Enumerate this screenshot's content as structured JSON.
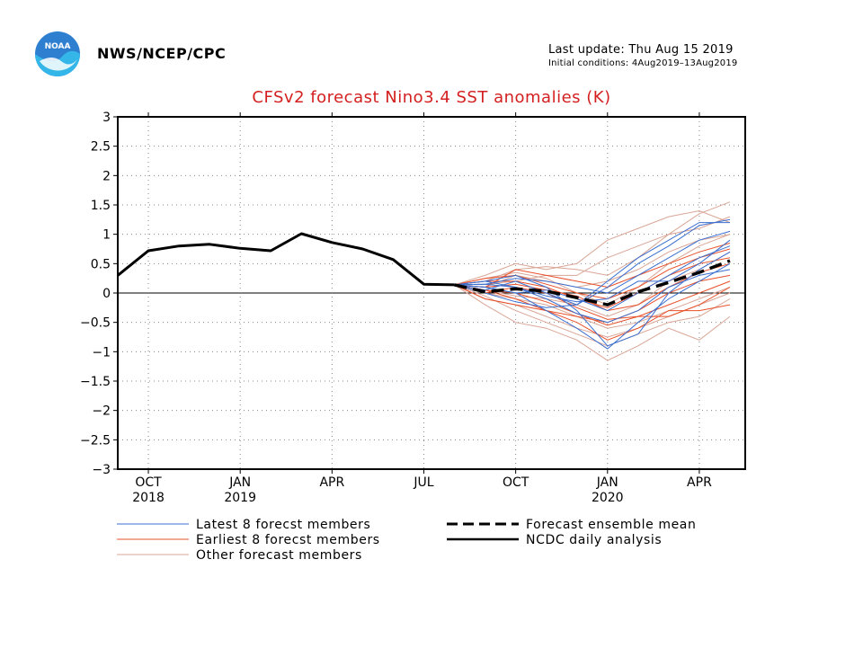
{
  "header": {
    "agency": "NWS/NCEP/CPC",
    "last_update": "Last update: Thu Aug 15 2019",
    "initial_conditions": "Initial conditions: 4Aug2019–13Aug2019",
    "logo_text": "NOAA"
  },
  "colors": {
    "title": "#d42020",
    "latest": "#3a6fd0",
    "earliest": "#e8502a",
    "other": "#d9a596",
    "analysis": "#000000"
  },
  "chart_data": {
    "type": "line",
    "title": "CFSv2 forecast Nino3.4 SST anomalies (K)",
    "ylim": [
      -3,
      3
    ],
    "yticks": [
      "3",
      "2.5",
      "2",
      "1.5",
      "1",
      "0.5",
      "0",
      "−0.5",
      "−1",
      "−1.5",
      "−2",
      "−2.5",
      "−3"
    ],
    "ytick_values": [
      3,
      2.5,
      2,
      1.5,
      1,
      0.5,
      0,
      -0.5,
      -1,
      -1.5,
      -2,
      -2.5,
      -3
    ],
    "xlim": [
      0,
      20.5
    ],
    "xticks": [
      {
        "x": 1,
        "label": "OCT",
        "year": "2018"
      },
      {
        "x": 4,
        "label": "JAN",
        "year": "2019"
      },
      {
        "x": 7,
        "label": "APR",
        "year": ""
      },
      {
        "x": 10,
        "label": "JUL",
        "year": ""
      },
      {
        "x": 13,
        "label": "OCT",
        "year": ""
      },
      {
        "x": 16,
        "label": "JAN",
        "year": "2020"
      },
      {
        "x": 19,
        "label": "APR",
        "year": ""
      }
    ],
    "grid": true,
    "zero_line": true,
    "legend": [
      {
        "label": "Latest 8 forecst members",
        "style": "latest"
      },
      {
        "label": "Earliest 8 forecst members",
        "style": "earliest"
      },
      {
        "label": "Other forecast members",
        "style": "other"
      },
      {
        "label": "Forecast ensemble mean",
        "style": "mean"
      },
      {
        "label": "NCDC daily analysis",
        "style": "analysis"
      }
    ],
    "analysis": {
      "x": [
        0,
        1,
        2,
        3,
        4,
        5,
        6,
        7,
        8,
        9,
        10,
        11
      ],
      "y": [
        0.3,
        0.72,
        0.8,
        0.83,
        0.76,
        0.72,
        1.01,
        0.86,
        0.75,
        0.57,
        0.15,
        0.14
      ]
    },
    "ensemble_mean": {
      "x": [
        11,
        12,
        13,
        14,
        15,
        16,
        17,
        18,
        19,
        20
      ],
      "y": [
        0.14,
        0.02,
        0.07,
        0.03,
        -0.08,
        -0.2,
        0.02,
        0.18,
        0.35,
        0.55
      ]
    },
    "members_x": [
      11,
      12,
      13,
      14,
      15,
      16,
      17,
      18,
      19,
      20
    ],
    "latest_members": [
      [
        0.14,
        0.2,
        0.3,
        0.1,
        -0.3,
        -0.9,
        -0.7,
        0.0,
        0.4,
        0.7
      ],
      [
        0.14,
        0.1,
        0.0,
        -0.3,
        -0.6,
        -0.95,
        -0.5,
        -0.1,
        0.2,
        0.5
      ],
      [
        0.14,
        0.15,
        0.25,
        0.2,
        0.1,
        0.0,
        0.3,
        0.6,
        0.9,
        1.05
      ],
      [
        0.14,
        0.05,
        0.2,
        0.0,
        -0.2,
        0.1,
        0.5,
        0.8,
        1.15,
        1.25
      ],
      [
        0.14,
        0.1,
        0.0,
        0.05,
        -0.1,
        -0.3,
        0.0,
        0.3,
        0.6,
        0.8
      ],
      [
        0.14,
        0.2,
        0.1,
        -0.1,
        -0.35,
        -0.5,
        -0.3,
        0.1,
        0.3,
        0.4
      ],
      [
        0.14,
        0.0,
        -0.15,
        -0.25,
        -0.2,
        0.2,
        0.6,
        0.9,
        1.2,
        1.2
      ],
      [
        0.14,
        0.15,
        0.1,
        -0.05,
        -0.15,
        -0.1,
        0.2,
        0.2,
        0.5,
        0.9
      ]
    ],
    "earliest_members": [
      [
        0.14,
        0.05,
        -0.1,
        -0.3,
        -0.5,
        -0.8,
        -0.6,
        -0.3,
        -0.3,
        -0.2
      ],
      [
        0.14,
        0.1,
        0.4,
        0.3,
        0.2,
        0.1,
        0.3,
        0.5,
        0.7,
        0.85
      ],
      [
        0.14,
        0.0,
        0.1,
        0.0,
        -0.25,
        -0.45,
        -0.4,
        -0.4,
        -0.2,
        0.1
      ],
      [
        0.14,
        0.2,
        0.2,
        0.1,
        -0.1,
        -0.25,
        0.0,
        0.3,
        0.5,
        0.6
      ],
      [
        0.14,
        -0.1,
        -0.2,
        -0.3,
        -0.4,
        -0.5,
        -0.3,
        0.0,
        0.2,
        0.3
      ],
      [
        0.14,
        0.25,
        0.3,
        0.15,
        0.0,
        -0.1,
        0.1,
        0.4,
        0.6,
        0.75
      ],
      [
        0.14,
        0.05,
        0.0,
        -0.15,
        -0.35,
        -0.55,
        -0.4,
        -0.2,
        0.0,
        0.2
      ],
      [
        0.14,
        0.1,
        0.15,
        0.05,
        -0.05,
        -0.3,
        -0.2,
        0.1,
        0.35,
        0.5
      ]
    ],
    "other_members": [
      [
        0.14,
        0.2,
        0.4,
        0.45,
        0.4,
        0.3,
        0.6,
        1.0,
        1.35,
        1.55
      ],
      [
        0.14,
        -0.2,
        -0.5,
        -0.6,
        -0.8,
        -1.15,
        -0.9,
        -0.6,
        -0.8,
        -0.4
      ],
      [
        0.14,
        0.3,
        0.5,
        0.4,
        0.5,
        0.9,
        1.1,
        1.3,
        1.4,
        1.2
      ],
      [
        0.14,
        -0.05,
        -0.3,
        -0.5,
        -0.7,
        -0.9,
        -0.7,
        -0.5,
        -0.4,
        -0.1
      ],
      [
        0.14,
        0.15,
        0.2,
        0.3,
        0.3,
        0.6,
        0.8,
        1.0,
        1.1,
        1.3
      ],
      [
        0.14,
        0.0,
        -0.1,
        -0.2,
        -0.4,
        -0.6,
        -0.5,
        -0.3,
        -0.1,
        0.1
      ],
      [
        0.14,
        0.1,
        0.3,
        0.2,
        0.1,
        0.2,
        0.4,
        0.7,
        0.9,
        1.0
      ],
      [
        0.14,
        -0.1,
        -0.2,
        -0.4,
        -0.6,
        -0.75,
        -0.6,
        -0.4,
        -0.2,
        0.0
      ],
      [
        0.14,
        0.25,
        0.35,
        0.25,
        0.0,
        -0.2,
        0.1,
        0.5,
        0.8,
        1.0
      ],
      [
        0.14,
        0.05,
        -0.05,
        -0.1,
        -0.2,
        -0.4,
        -0.2,
        0.2,
        0.4,
        0.7
      ]
    ]
  }
}
